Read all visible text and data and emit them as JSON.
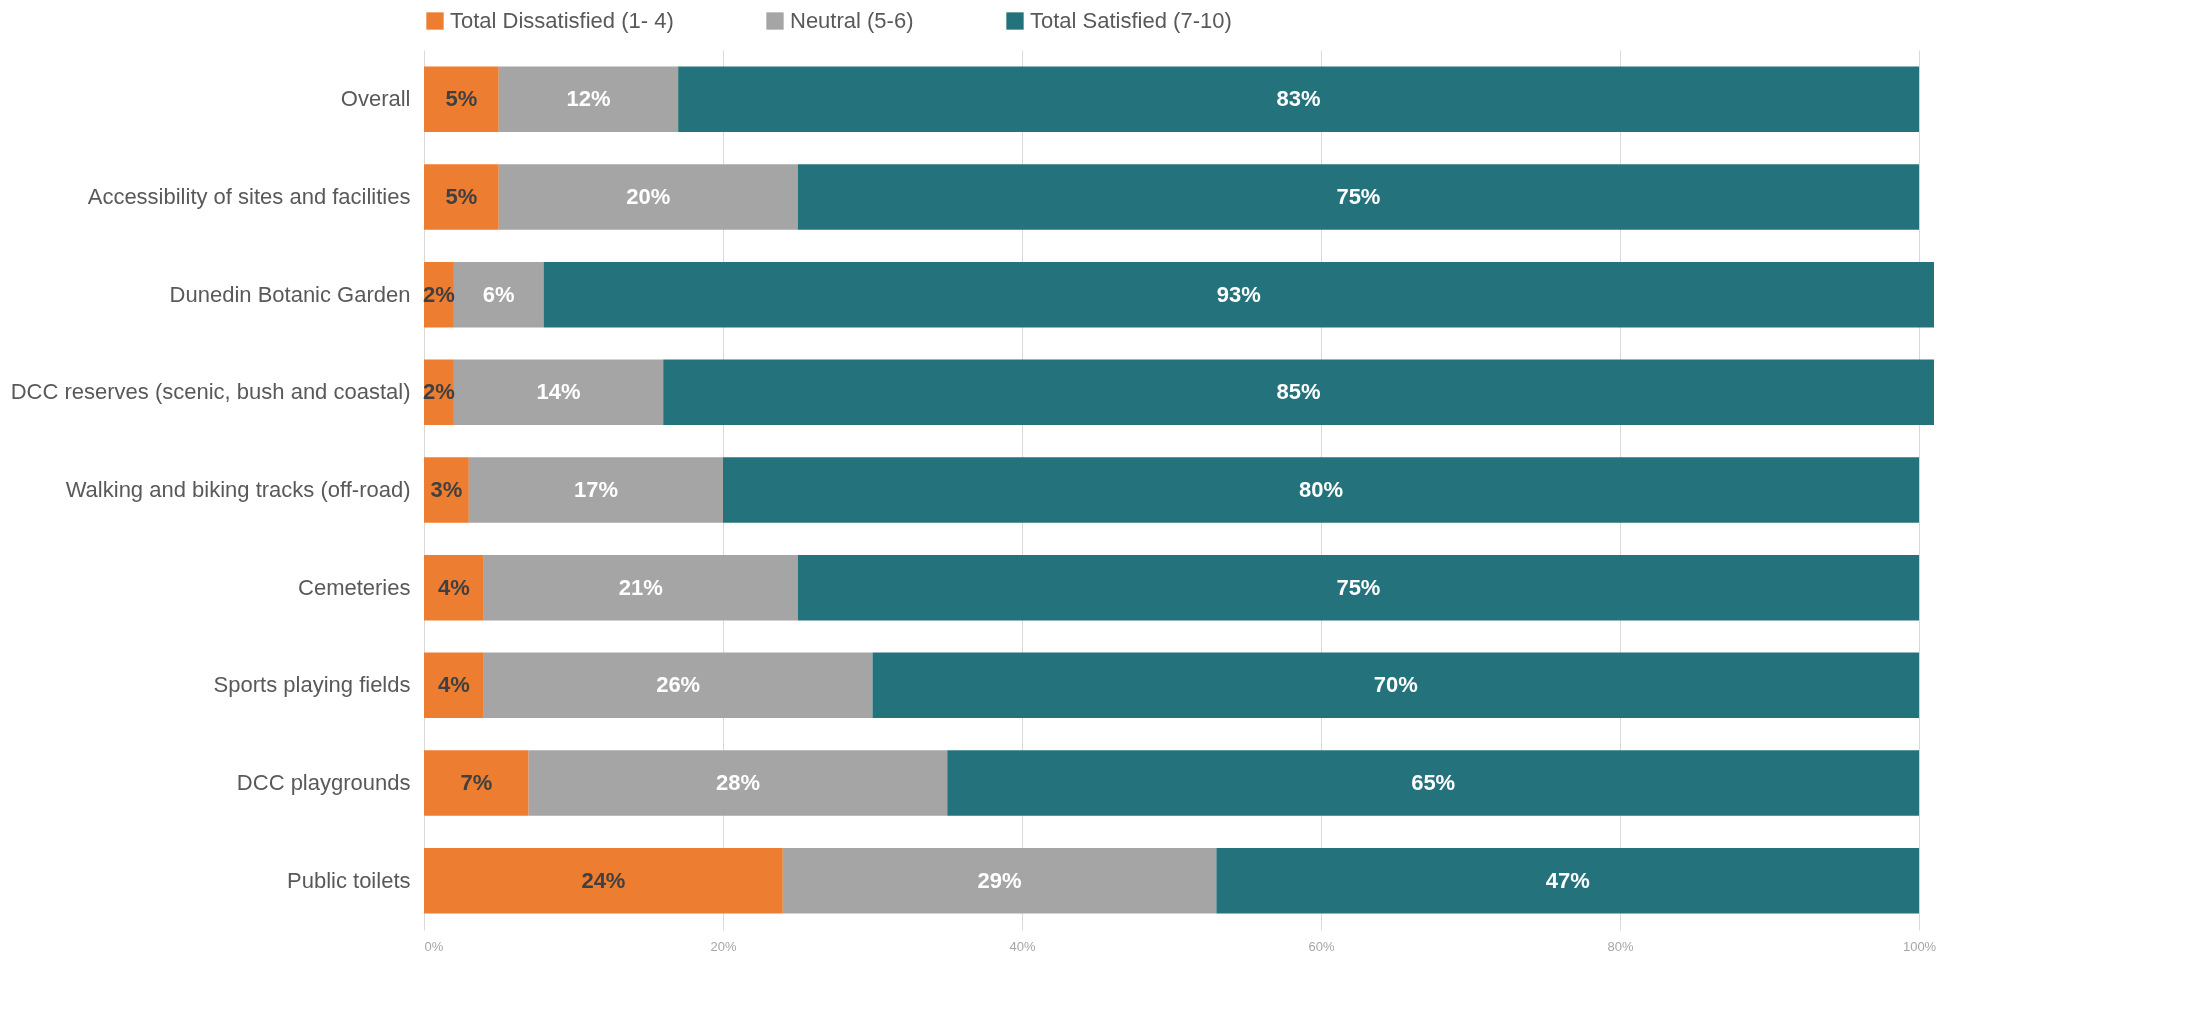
{
  "chart_data": {
    "type": "bar",
    "orientation": "horizontal",
    "stacked": true,
    "categories": [
      "Overall",
      "Accessibility of sites and facilities",
      "Dunedin Botanic Garden",
      "DCC reserves (scenic, bush and coastal)",
      "Walking and biking tracks (off-road)",
      "Cemeteries",
      "Sports playing fields",
      "DCC playgrounds",
      "Public toilets"
    ],
    "series": [
      {
        "name": "Total Dissatisfied (1- 4)",
        "color": "#ed7d31",
        "values": [
          5,
          5,
          2,
          2,
          3,
          4,
          4,
          7,
          24
        ],
        "value_labels": [
          "5%",
          "5%",
          "2%",
          "2%",
          "3%",
          "4%",
          "4%",
          "7%",
          "24%"
        ]
      },
      {
        "name": "Neutral (5-6)",
        "color": "#a5a5a5",
        "values": [
          12,
          20,
          6,
          14,
          17,
          21,
          26,
          28,
          29
        ],
        "value_labels": [
          "12%",
          "20%",
          "6%",
          "14%",
          "17%",
          "21%",
          "26%",
          "28%",
          "29%"
        ]
      },
      {
        "name": "Total Satisfied (7-10)",
        "color": "#24737c",
        "values": [
          83,
          75,
          93,
          85,
          80,
          75,
          70,
          65,
          47
        ],
        "value_labels": [
          "83%",
          "75%",
          "93%",
          "85%",
          "80%",
          "75%",
          "70%",
          "65%",
          "47%"
        ]
      }
    ],
    "xlim": [
      0,
      101
    ],
    "xticks": [
      {
        "value": 0,
        "label": "0%"
      },
      {
        "value": 20,
        "label": "20%"
      },
      {
        "value": 40,
        "label": "40%"
      },
      {
        "value": 60,
        "label": "60%"
      },
      {
        "value": 80,
        "label": "80%"
      },
      {
        "value": 100,
        "label": "100%"
      }
    ],
    "grid": "x",
    "legend": "top"
  }
}
